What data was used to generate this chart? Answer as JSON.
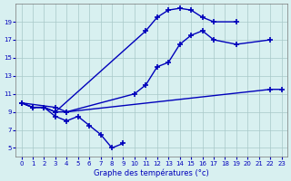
{
  "title": "Graphe des températures (°c)",
  "background_color": "#d8f0f0",
  "grid_color": "#a8c8c8",
  "line_color": "#0000bb",
  "xlim": [
    -0.5,
    23.5
  ],
  "ylim": [
    4,
    21
  ],
  "yticks": [
    5,
    7,
    9,
    11,
    13,
    15,
    17,
    19
  ],
  "xticks": [
    0,
    1,
    2,
    3,
    4,
    5,
    6,
    7,
    8,
    9,
    10,
    11,
    12,
    13,
    14,
    15,
    16,
    17,
    18,
    19,
    20,
    21,
    22,
    23
  ],
  "series": {
    "curve1_x": [
      0,
      1,
      2,
      3,
      11,
      12,
      13,
      14,
      15,
      16,
      17,
      19
    ],
    "curve1_y": [
      10.0,
      9.5,
      9.5,
      9.0,
      18.0,
      19.5,
      20.3,
      20.5,
      20.3,
      19.5,
      19.0,
      19.0
    ],
    "curve2_x": [
      0,
      1,
      2,
      3,
      4,
      10,
      11,
      12,
      13,
      14,
      15,
      16,
      17,
      19,
      22
    ],
    "curve2_y": [
      10.0,
      9.5,
      9.5,
      9.0,
      9.0,
      11.0,
      12.0,
      14.0,
      14.5,
      16.5,
      17.5,
      18.0,
      17.0,
      16.5,
      17.0
    ],
    "curve3_x": [
      0,
      3,
      4,
      22,
      23
    ],
    "curve3_y": [
      10.0,
      9.5,
      9.0,
      11.5,
      11.5
    ],
    "curve4_x": [
      0,
      1,
      2,
      3,
      4,
      5,
      6,
      7,
      8,
      9
    ],
    "curve4_y": [
      10.0,
      9.5,
      9.5,
      8.5,
      8.0,
      8.5,
      7.5,
      6.5,
      5.0,
      5.5
    ]
  }
}
